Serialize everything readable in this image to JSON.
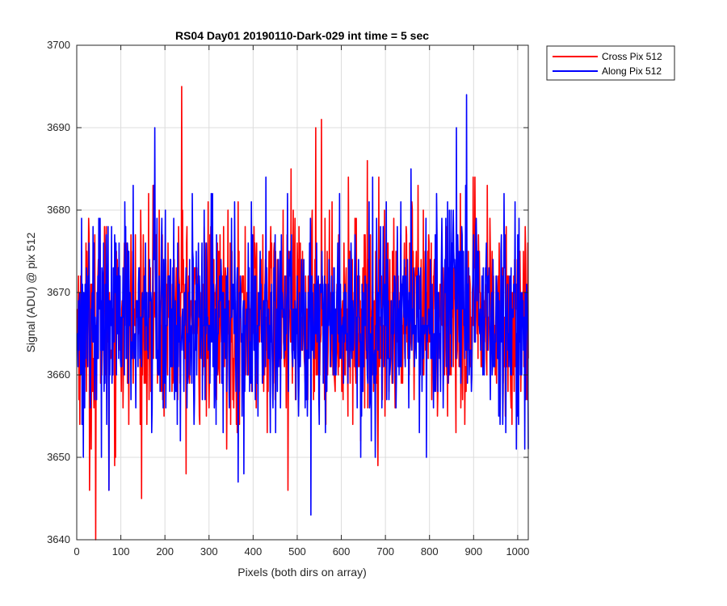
{
  "chart_data": {
    "type": "line",
    "title": "RS04 Day01 20190110-Dark-029 int time = 5 sec",
    "xlabel": "Pixels (both dirs on array)",
    "ylabel": "Signal (ADU) @ pix 512",
    "xlim": [
      0,
      1024
    ],
    "ylim": [
      3640,
      3700
    ],
    "xticks": [
      0,
      100,
      200,
      300,
      400,
      500,
      600,
      700,
      800,
      900,
      1000
    ],
    "yticks": [
      3640,
      3650,
      3660,
      3670,
      3680,
      3690,
      3700
    ],
    "grid": true,
    "legend_position": "outside-top-right",
    "series": [
      {
        "name": "Cross Pix 512",
        "color": "#ff0000",
        "summary": {
          "mean": 3667,
          "min": 3640,
          "max": 3695
        },
        "extremes": [
          [
            42,
            3640
          ],
          [
            237,
            3695
          ],
          [
            554,
            3691
          ],
          [
            541,
            3690
          ],
          [
            478,
            3646
          ],
          [
            28,
            3646
          ],
          [
            72,
            3646
          ]
        ]
      },
      {
        "name": "Along Pix 512",
        "color": "#0000ff",
        "summary": {
          "mean": 3667,
          "min": 3643,
          "max": 3694
        },
        "extremes": [
          [
            530,
            3643
          ],
          [
            883,
            3694
          ],
          [
            176,
            3690
          ],
          [
            860,
            3690
          ],
          [
            72,
            3646
          ],
          [
            365,
            3647
          ],
          [
            14,
            3650
          ]
        ]
      }
    ]
  }
}
